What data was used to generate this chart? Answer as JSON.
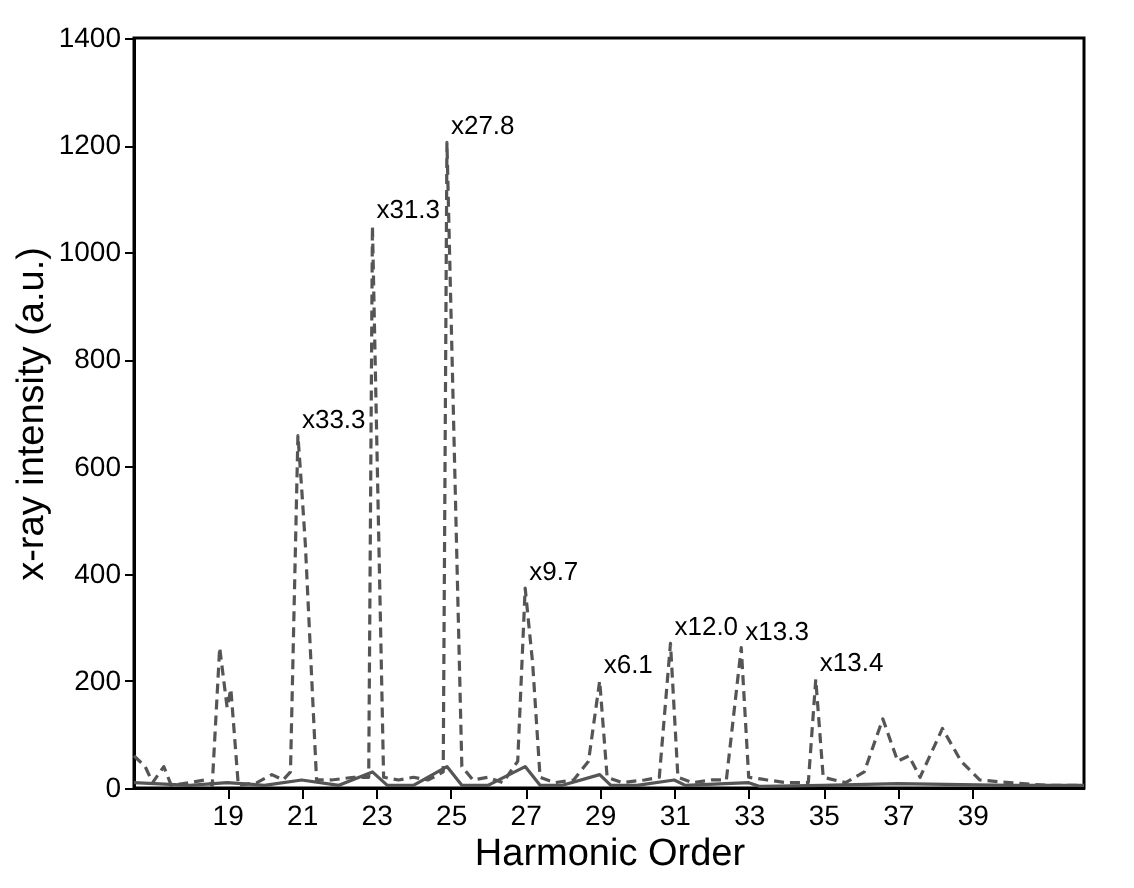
{
  "chart_data": {
    "type": "line",
    "xlabel": "Harmonic Order",
    "ylabel": "x-ray intensity (a.u.)",
    "xlim": [
      16.5,
      42
    ],
    "xticks": [
      19,
      21,
      23,
      25,
      27,
      29,
      31,
      33,
      35,
      37,
      39
    ],
    "ylim": [
      0,
      1400
    ],
    "yticks": [
      0,
      200,
      400,
      600,
      800,
      1000,
      1200,
      1400
    ],
    "marker": "none",
    "series": [
      {
        "color": "#555555",
        "line_style": "dashed",
        "x": [
          16.5,
          16.8,
          17.0,
          17.3,
          17.5,
          18.0,
          18.4,
          18.6,
          18.8,
          19.0,
          19.1,
          19.3,
          19.8,
          20.2,
          20.5,
          20.7,
          20.9,
          21.0,
          21.1,
          21.4,
          21.8,
          22.4,
          22.8,
          22.9,
          23.2,
          23.6,
          24.0,
          24.4,
          24.8,
          24.9,
          25.3,
          25.6,
          26.0,
          26.4,
          26.8,
          27.0,
          27.2,
          27.4,
          27.8,
          28.3,
          28.7,
          29.0,
          29.2,
          29.6,
          30.2,
          30.6,
          30.9,
          31.1,
          31.5,
          32.0,
          32.4,
          32.8,
          33.0,
          33.5,
          34.0,
          34.6,
          34.8,
          35.0,
          35.6,
          36.1,
          36.6,
          37.0,
          37.3,
          37.6,
          38.2,
          38.7,
          39.2,
          40.0,
          41.0,
          42.0
        ],
        "values": [
          60,
          40,
          10,
          40,
          5,
          10,
          15,
          5,
          262,
          150,
          185,
          5,
          10,
          25,
          15,
          30,
          658,
          560,
          454,
          15,
          15,
          20,
          20,
          1049,
          20,
          15,
          20,
          15,
          30,
          1205,
          40,
          15,
          20,
          10,
          50,
          373,
          233,
          20,
          10,
          15,
          50,
          200,
          20,
          10,
          15,
          20,
          270,
          20,
          10,
          15,
          15,
          262,
          20,
          15,
          10,
          10,
          203,
          20,
          10,
          30,
          129,
          50,
          60,
          20,
          111,
          50,
          15,
          10,
          5,
          5
        ]
      },
      {
        "color": "#555555",
        "line_style": "solid",
        "x": [
          16.5,
          18.0,
          19.0,
          20.0,
          21.0,
          22.0,
          22.9,
          23.3,
          24.0,
          24.9,
          25.3,
          26.0,
          27.0,
          27.4,
          28.0,
          29.0,
          29.3,
          30.0,
          31.0,
          31.3,
          33.0,
          33.3,
          35.0,
          37.0,
          40.0,
          42.0
        ],
        "values": [
          10,
          5,
          10,
          5,
          15,
          5,
          30,
          5,
          5,
          40,
          5,
          5,
          40,
          5,
          5,
          25,
          5,
          5,
          15,
          5,
          10,
          3,
          5,
          8,
          5,
          5
        ]
      }
    ],
    "annotations": [
      {
        "text": "x33.3",
        "x": 20.9,
        "y": 658
      },
      {
        "text": "x31.3",
        "x": 22.9,
        "y": 1049
      },
      {
        "text": "x27.8",
        "x": 24.9,
        "y": 1205
      },
      {
        "text": "x9.7",
        "x": 27.0,
        "y": 373
      },
      {
        "text": "x6.1",
        "x": 29.0,
        "y": 200
      },
      {
        "text": "x12.0",
        "x": 30.9,
        "y": 270
      },
      {
        "text": "x13.3",
        "x": 32.8,
        "y": 262
      },
      {
        "text": "x13.4",
        "x": 34.8,
        "y": 203
      }
    ]
  }
}
